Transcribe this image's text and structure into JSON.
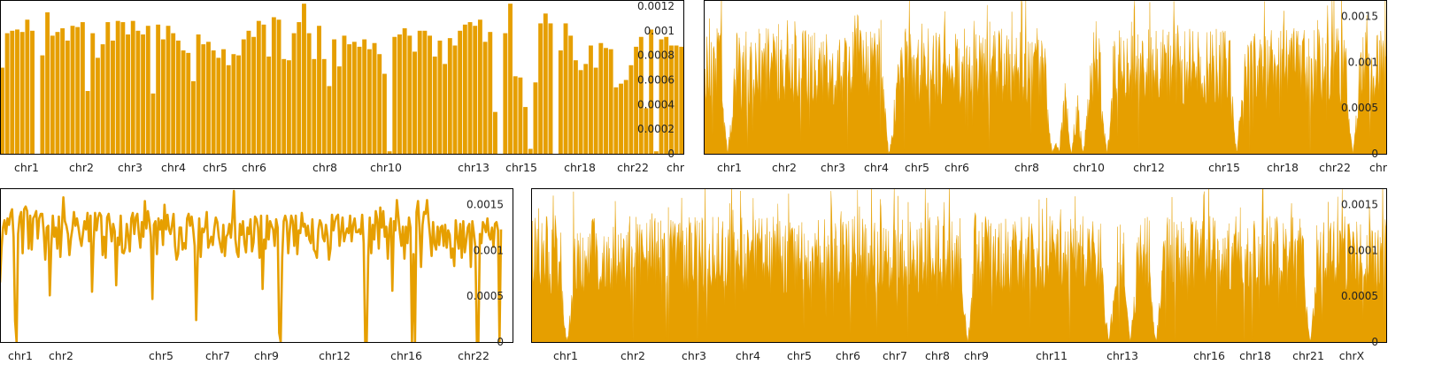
{
  "colors": {
    "series": "#e69f00",
    "frame": "#000000",
    "text": "#222222"
  },
  "chart_data": [
    {
      "type": "bar",
      "title": "",
      "xlabel": "",
      "ylabel": "",
      "ylim": [
        0,
        0.00125
      ],
      "yticks": [
        {
          "v": 0,
          "t": "0"
        },
        {
          "v": 0.0002,
          "t": "0.0002"
        },
        {
          "v": 0.0004,
          "t": "0.0004"
        },
        {
          "v": 0.0006,
          "t": "0.0006"
        },
        {
          "v": 0.0008,
          "t": "0.0008"
        },
        {
          "v": 0.001,
          "t": "0.001"
        },
        {
          "v": 0.0012,
          "t": "0.0012"
        }
      ],
      "chromosome_labels": [
        "chr1",
        "chr2",
        "chr3",
        "chr4",
        "chr5",
        "chr6",
        "chr8",
        "chr10",
        "chr13",
        "chr15",
        "chr18",
        "chr22",
        "chr"
      ],
      "values": [
        0.0007,
        0.00098,
        0.001,
        0.00101,
        0.00099,
        0.00109,
        0.001,
        0,
        0.0008,
        0.00115,
        0.00096,
        0.00099,
        0.00102,
        0.00092,
        0.00104,
        0.00103,
        0.00107,
        0.00051,
        0.00098,
        0.00078,
        0.00089,
        0.00107,
        0.00092,
        0.00108,
        0.00107,
        0.00097,
        0.00108,
        0.001,
        0.00097,
        0.00104,
        0.00049,
        0.00105,
        0.00093,
        0.00104,
        0.00098,
        0.00092,
        0.00084,
        0.00082,
        0.00059,
        0.00097,
        0.00089,
        0.00091,
        0.00084,
        0.00078,
        0.00085,
        0.00072,
        0.00081,
        0.0008,
        0.00093,
        0.001,
        0.00095,
        0.00108,
        0.00105,
        0.00079,
        0.00111,
        0.00109,
        0.00077,
        0.00076,
        0.00098,
        0.00107,
        0.00122,
        0.00098,
        0.00077,
        0.00104,
        0.00077,
        0.00055,
        0.00093,
        0.00071,
        0.00096,
        0.00089,
        0.00091,
        0.00087,
        0.00093,
        0.00085,
        0.0009,
        0.00081,
        0.00065,
        2e-05,
        0.00095,
        0.00097,
        0.00102,
        0.00096,
        0.00083,
        0.001,
        0.001,
        0.00096,
        0.00079,
        0.00092,
        0.00073,
        0.00094,
        0.00088,
        0.001,
        0.00105,
        0.00107,
        0.00104,
        0.00109,
        0.00091,
        0.00099,
        0.00034,
        0,
        0.00098,
        0.00122,
        0.00063,
        0.00062,
        0.00038,
        4e-05,
        0.00058,
        0.00106,
        0.00114,
        0.00106,
        0,
        0.00084,
        0.00106,
        0.00096,
        0.00076,
        0.00068,
        0.00073,
        0.00088,
        0.0007,
        0.0009,
        0.00086,
        0.00085,
        0.00054,
        0.00057,
        0.0006,
        0.00072,
        0.00087,
        0.00095,
        0.00037,
        0.00101,
        2e-05,
        0.00093,
        0.00095,
        0.00088,
        0.00088,
        0.00087
      ]
    },
    {
      "type": "area",
      "title": "",
      "xlabel": "",
      "ylabel": "",
      "ylim": [
        0,
        0.00168
      ],
      "yticks": [
        {
          "v": 0,
          "t": "0"
        },
        {
          "v": 0.0005,
          "t": "0.0005"
        },
        {
          "v": 0.001,
          "t": "0.001"
        },
        {
          "v": 0.0015,
          "t": "0.0015"
        }
      ],
      "chromosome_labels": [
        "chr1",
        "chr2",
        "chr3",
        "chr4",
        "chr5",
        "chr6",
        "chr8",
        "chr10",
        "chr12",
        "chr15",
        "chr18",
        "chr22",
        "chr"
      ],
      "gaps": [
        0.035,
        0.272,
        0.51,
        0.52,
        0.538,
        0.555,
        0.59,
        0.78,
        0.95
      ],
      "mean": 0.00095
    },
    {
      "type": "line",
      "title": "",
      "xlabel": "",
      "ylabel": "",
      "ylim": [
        0,
        0.00168
      ],
      "yticks": [
        {
          "v": 0,
          "t": "0"
        },
        {
          "v": 0.0005,
          "t": "0.0005"
        },
        {
          "v": 0.001,
          "t": "0.001"
        },
        {
          "v": 0.0015,
          "t": "0.0015"
        }
      ],
      "chromosome_labels": [
        "chr1",
        "chr2",
        "chr5",
        "chr7",
        "chr9",
        "chr12",
        "chr16",
        "chr22"
      ],
      "values": [
        0.00065,
        0.00102,
        0.00125,
        0.00133,
        0.00118,
        0.00135,
        0.00128,
        0.0014,
        0.00145,
        0.00115,
        0.00023,
        0.0,
        0.00118,
        0.00136,
        0.00142,
        0.00097,
        0.00145,
        0.00148,
        0.00143,
        0.00102,
        0.00138,
        0.00101,
        0.00135,
        0.00138,
        0.00143,
        0.00113,
        0.00135,
        0.0014,
        0.0014,
        0.0012,
        0.0009,
        0.00125,
        0.00127,
        0.00051,
        0.00105,
        0.00138,
        0.00115,
        0.00125,
        0.00102,
        0.00137,
        0.00093,
        0.00125,
        0.00158,
        0.00132,
        0.00127,
        0.00118,
        0.00095,
        0.00113,
        0.00124,
        0.00142,
        0.00127,
        0.00135,
        0.00125,
        0.00113,
        0.00105,
        0.00119,
        0.00132,
        0.00123,
        0.00141,
        0.0011,
        0.00138,
        0.00055,
        0.00108,
        0.00141,
        0.00122,
        0.00136,
        0.00141,
        0.00138,
        0.00095,
        0.00115,
        0.00092,
        0.00136,
        0.0014,
        0.00127,
        0.0011,
        0.00129,
        0.00121,
        0.00062,
        0.00114,
        0.00106,
        0.00138,
        0.00098,
        0.00097,
        0.00103,
        0.00129,
        0.00116,
        0.00099,
        0.00135,
        0.00141,
        0.00118,
        0.00136,
        0.0014,
        0.00118,
        0.00103,
        0.00131,
        0.00115,
        0.00154,
        0.00124,
        0.00143,
        0.00132,
        0.00115,
        0.00047,
        0.00128,
        0.00132,
        0.00096,
        0.00135,
        0.00123,
        0.00133,
        0.00106,
        0.0015,
        0.00123,
        0.00139,
        0.00123,
        0.00118,
        0.00128,
        0.0014,
        0.00105,
        0.0009,
        0.00096,
        0.00125,
        0.00125,
        0.00101,
        0.00108,
        0.00102,
        0.00135,
        0.0014,
        0.00127,
        0.00137,
        0.00123,
        0.00105,
        0.00024,
        0.00092,
        0.00135,
        0.00093,
        0.00124,
        0.0012,
        0.00126,
        0.00142,
        0.00103,
        0.00109,
        0.00115,
        0.00106,
        0.00124,
        0.00136,
        0.00131,
        0.00115,
        0.00106,
        0.00098,
        0.00128,
        0.00094,
        0.00115,
        0.00118,
        0.00129,
        0.00114,
        0.00135,
        0.00165,
        0.00112,
        0.00098,
        0.00093,
        0.00129,
        0.00117,
        0.00132,
        0.00108,
        0.00098,
        0.00125,
        0.00118,
        0.00134,
        0.00099,
        0.00109,
        0.00137,
        0.00134,
        0.00125,
        0.00092,
        0.00138,
        0.00058,
        0.00112,
        0.00102,
        0.00138,
        0.00112,
        0.00132,
        0.00127,
        0.00123,
        0.00105,
        0.00134,
        0.00125,
        0.0001,
        0.0,
        0.00092,
        0.00132,
        0.00138,
        0.00131,
        0.00097,
        0.00122,
        0.00138,
        0.00132,
        0.00105,
        0.00138,
        0.00096,
        0.00122,
        0.00119,
        0.00141,
        0.00126,
        0.00129,
        0.00116,
        0.00127,
        0.00112,
        0.00108,
        0.00134,
        0.00101,
        0.00098,
        0.00092,
        0.00123,
        0.00133,
        0.00129,
        0.00114,
        0.0011,
        0.00128,
        0.00116,
        0.0009,
        0.00102,
        0.00139,
        0.00122,
        0.00132,
        0.00137,
        0.00139,
        0.00105,
        0.0012,
        0.00136,
        0.0011,
        0.00118,
        0.00124,
        0.00119,
        0.00138,
        0.0011,
        0.00128,
        0.00135,
        0.0012,
        0.0012,
        0.00123,
        0.00118,
        0.00139,
        0.00108,
        0.0,
        0.0,
        0.00093,
        0.00136,
        0.00097,
        0.00128,
        0.00112,
        0.00143,
        0.00134,
        0.00102,
        0.00147,
        0.00125,
        0.00143,
        0.00115,
        0.00126,
        0.00091,
        0.00124,
        0.00135,
        0.00056,
        0.00132,
        0.00122,
        0.00155,
        0.00137,
        0.00119,
        0.00105,
        0.00126,
        0.00091,
        0.00126,
        0.00108,
        0.00136,
        0.00125,
        0.0,
        0.00096,
        0.0,
        0.00142,
        0.00154,
        0.00125,
        0.00082,
        0.00128,
        0.00142,
        0.0014,
        0.00155,
        0.00133,
        0.00115,
        0.00094,
        0.00131,
        0.00107,
        0.00101,
        0.00126,
        0.00106,
        0.00125,
        0.00127,
        0.00105,
        0.00128,
        0.00103,
        0.00122,
        0.00117,
        0.00092,
        0.00102,
        0.00083,
        0.00133,
        0.00115,
        0.00102,
        0.00129,
        0.00092,
        0.00132,
        0.00098,
        0.00111,
        0.00125,
        0.00129,
        0.00082,
        0.00132,
        0.00119,
        0.00104,
        0.0,
        0.0,
        0.00118,
        0.00108,
        0.00131,
        0.00127,
        0.0012,
        0.00135,
        0.00117,
        0.00112,
        0.00125,
        0.00104,
        0.00129,
        0.00131,
        0.00122,
        0.0,
        0.00123
      ]
    },
    {
      "type": "area",
      "title": "",
      "xlabel": "",
      "ylabel": "",
      "ylim": [
        0,
        0.00168
      ],
      "yticks": [
        {
          "v": 0,
          "t": "0"
        },
        {
          "v": 0.0005,
          "t": "0.0005"
        },
        {
          "v": 0.001,
          "t": "0.001"
        },
        {
          "v": 0.0015,
          "t": "0.0015"
        }
      ],
      "chromosome_labels": [
        "chr1",
        "chr2",
        "chr3",
        "chr4",
        "chr5",
        "chr6",
        "chr7",
        "chr8",
        "chr9",
        "chr11",
        "chr13",
        "chr16",
        "chr18",
        "chr21",
        "chrX"
      ],
      "gaps": [
        0.042,
        0.51,
        0.675,
        0.7,
        0.73,
        0.91
      ],
      "mean": 0.00095
    }
  ]
}
